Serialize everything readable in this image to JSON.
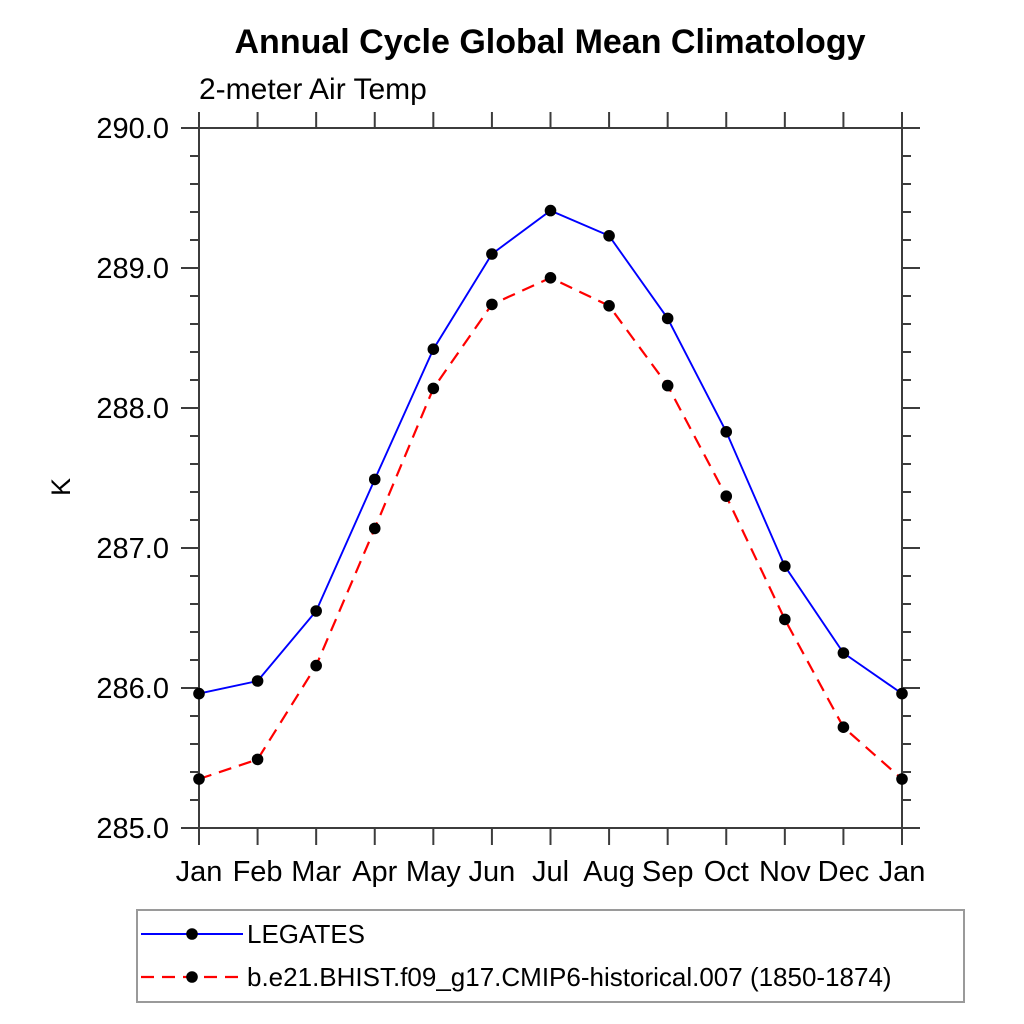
{
  "chart_data": {
    "type": "line",
    "title": "Annual Cycle Global Mean Climatology",
    "subtitle": "2-meter Air Temp",
    "ylabel": "K",
    "xlabel": "",
    "categories": [
      "Jan",
      "Feb",
      "Mar",
      "Apr",
      "May",
      "Jun",
      "Jul",
      "Aug",
      "Sep",
      "Oct",
      "Nov",
      "Dec",
      "Jan"
    ],
    "series": [
      {
        "name": "LEGATES",
        "color": "#0000ff",
        "line_style": "solid",
        "marker": "filled-circle",
        "marker_color": "#000000",
        "values": [
          285.96,
          286.05,
          286.55,
          287.49,
          288.42,
          289.1,
          289.41,
          289.23,
          288.64,
          287.83,
          286.87,
          286.25,
          285.96
        ]
      },
      {
        "name": "b.e21.BHIST.f09_g17.CMIP6-historical.007 (1850-1874)",
        "color": "#ff0000",
        "line_style": "dashed",
        "marker": "filled-circle",
        "marker_color": "#000000",
        "values": [
          285.35,
          285.49,
          286.16,
          287.14,
          288.14,
          288.74,
          288.93,
          288.73,
          288.16,
          287.37,
          286.49,
          285.72,
          285.35
        ]
      }
    ],
    "ylim": [
      285.0,
      290.0
    ],
    "y_major_step": 1.0,
    "y_minor_step": 0.2,
    "y_tick_labels": [
      "285.0",
      "286.0",
      "287.0",
      "288.0",
      "289.0",
      "290.0"
    ],
    "grid": false,
    "legend_position": "bottom-left",
    "axis_color": "#3c3c3c",
    "legend_border_color": "#9a9a9a"
  }
}
